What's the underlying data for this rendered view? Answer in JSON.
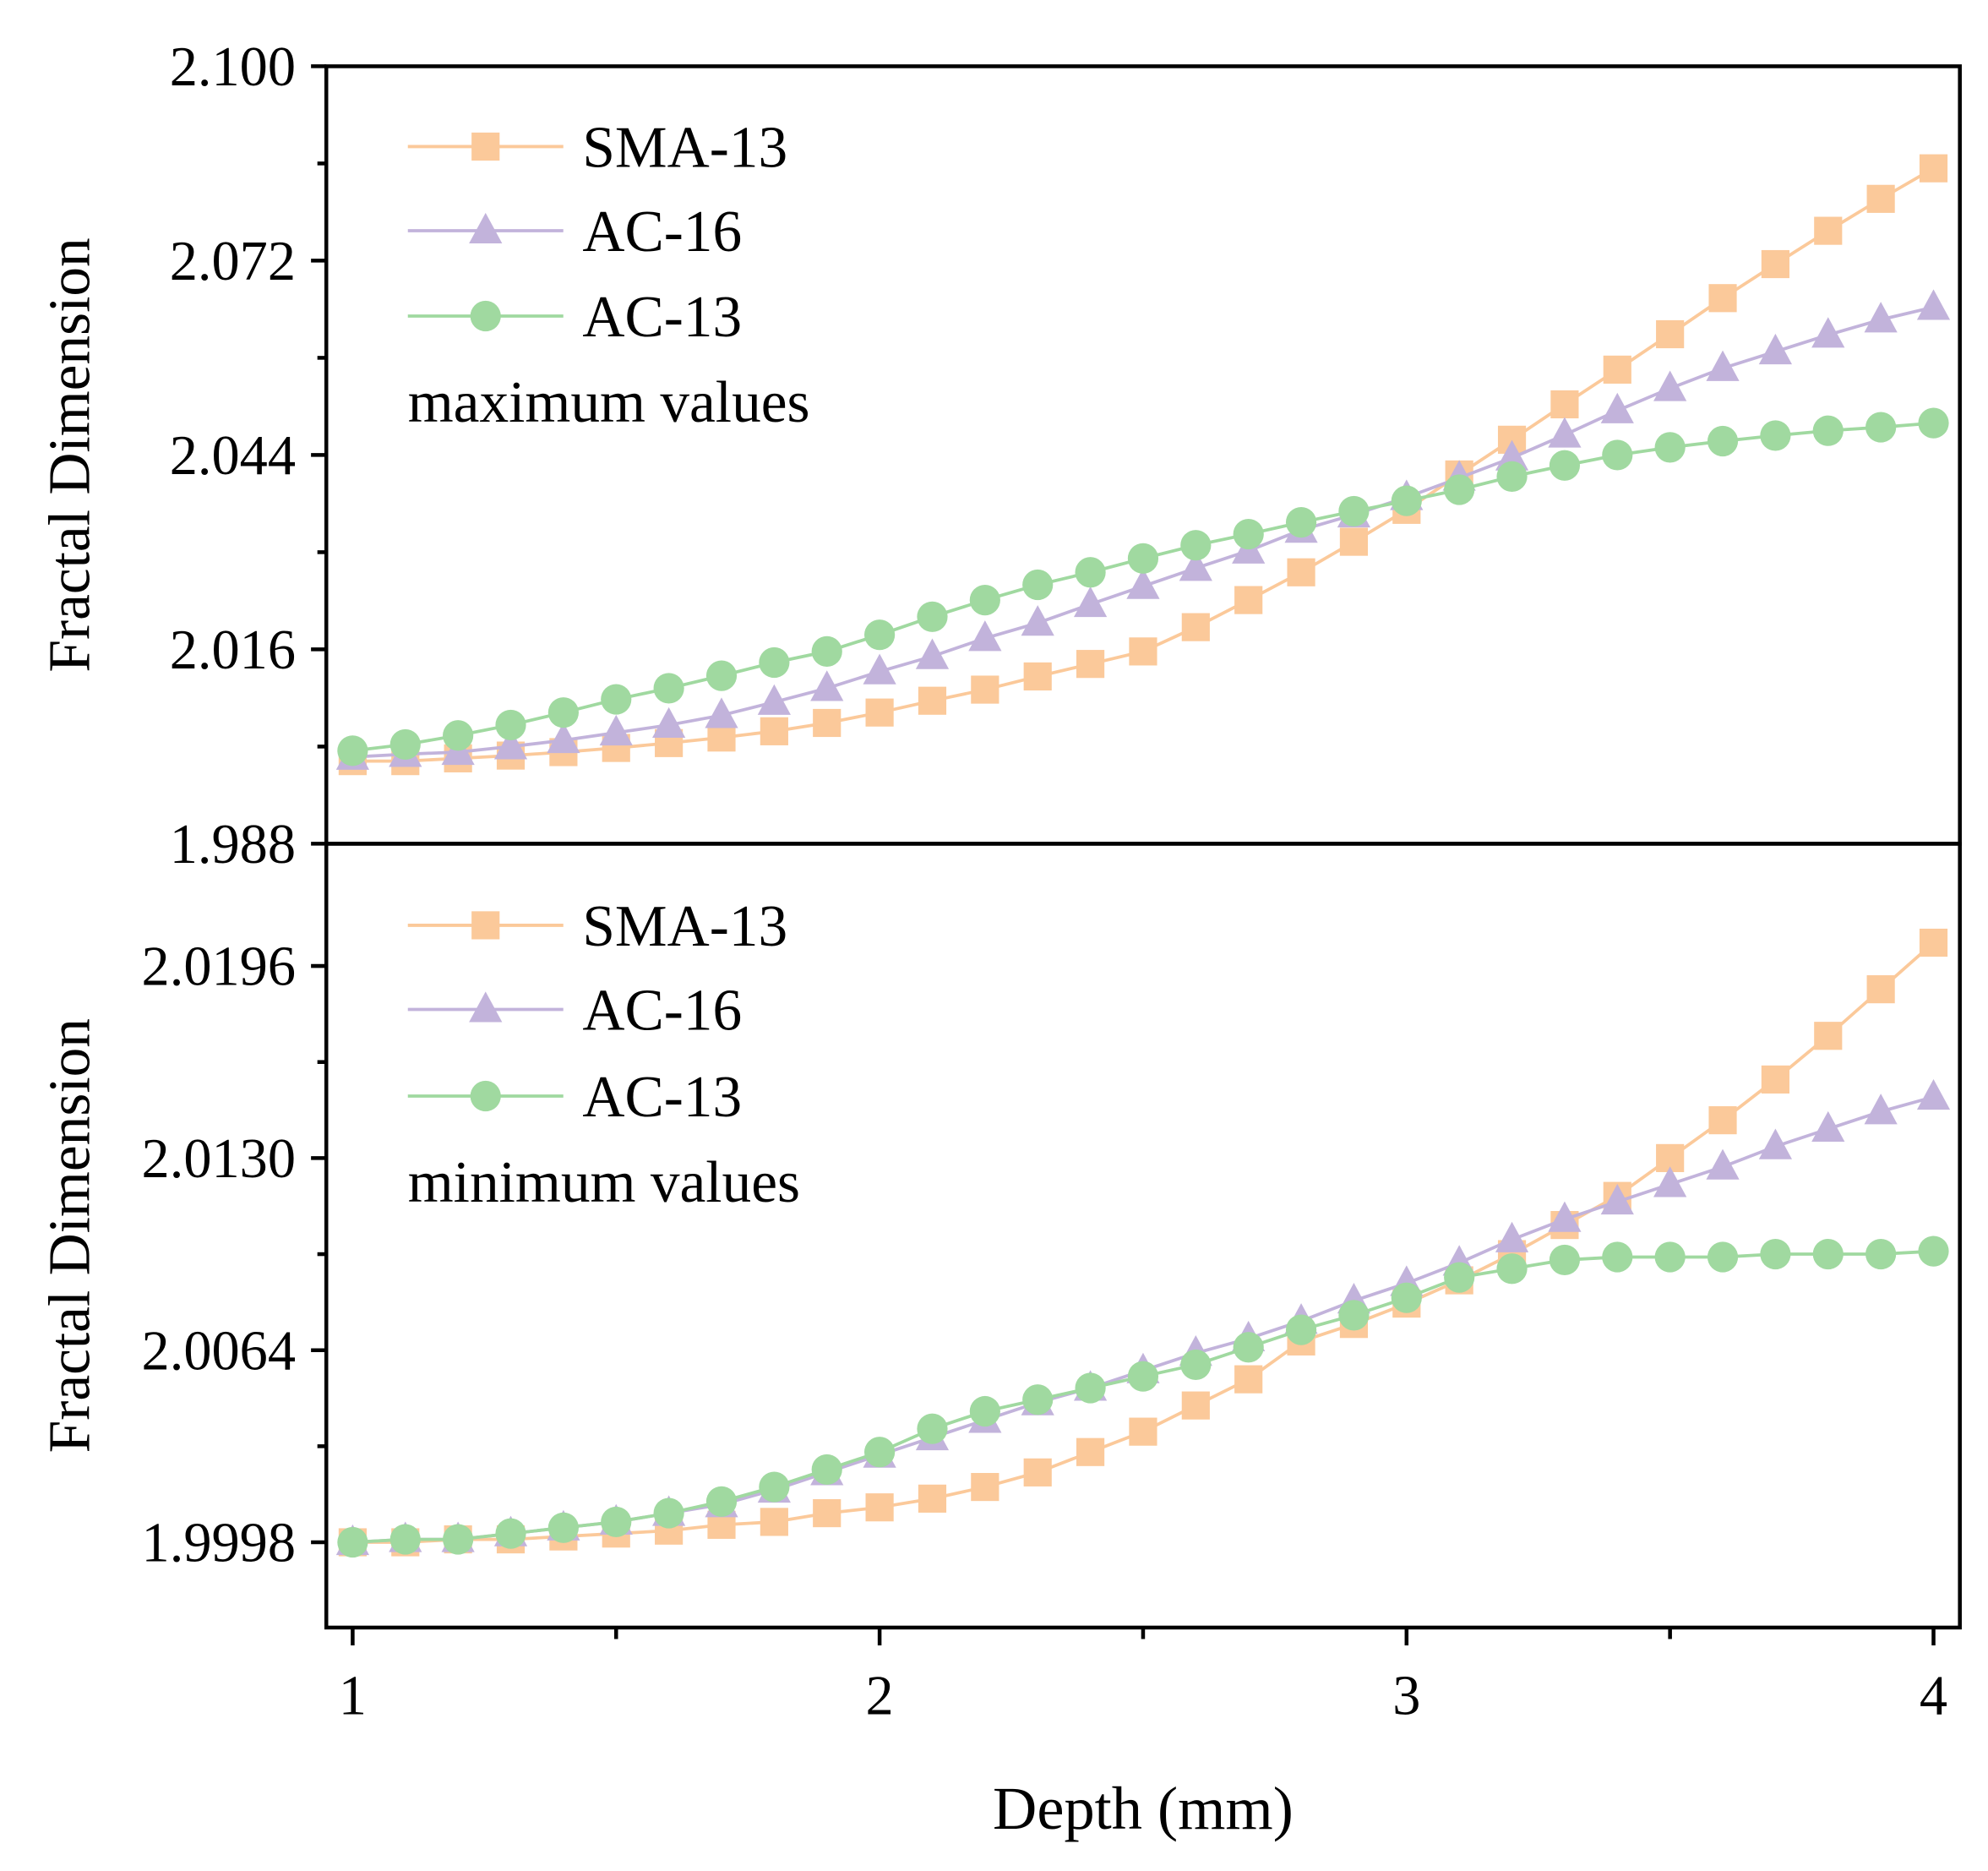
{
  "chart_data": [
    {
      "type": "line",
      "panel": "top",
      "ylabel": "Fractal Dimension",
      "note": "maximum values",
      "ylim": [
        1.988,
        2.1
      ],
      "yticks": [
        "2.100",
        "2.072",
        "2.044",
        "2.016",
        "1.988"
      ],
      "ytick_values": [
        2.1,
        2.072,
        2.044,
        2.016,
        1.988
      ],
      "x": [
        1.0,
        1.1,
        1.2,
        1.3,
        1.4,
        1.5,
        1.6,
        1.7,
        1.8,
        1.9,
        2.0,
        2.1,
        2.2,
        2.3,
        2.4,
        2.5,
        2.6,
        2.7,
        2.8,
        2.9,
        3.0,
        3.1,
        3.2,
        3.3,
        3.4,
        3.5,
        3.6,
        3.7,
        3.8,
        3.9,
        4.0
      ],
      "series": [
        {
          "name": "SMA-13",
          "marker": "square",
          "color": "#FBC99A",
          "values": [
            1.9999,
            1.9999,
            2.0003,
            2.0007,
            2.0012,
            2.0018,
            2.0025,
            2.0033,
            2.0042,
            2.0054,
            2.0069,
            2.0086,
            2.0102,
            2.0121,
            2.0139,
            2.0157,
            2.0192,
            2.0231,
            2.0271,
            2.0315,
            2.0361,
            2.0412,
            2.0462,
            2.0513,
            2.0563,
            2.0614,
            2.0666,
            2.0715,
            2.0763,
            2.0809,
            2.0853
          ]
        },
        {
          "name": "AC-16",
          "marker": "triangle",
          "color": "#C2B3DB",
          "values": [
            2.0005,
            2.0009,
            2.0012,
            2.002,
            2.0029,
            2.004,
            2.0051,
            2.0065,
            2.0084,
            2.0104,
            2.0128,
            2.015,
            2.0176,
            2.0198,
            2.0225,
            2.0251,
            2.0277,
            2.0302,
            2.0332,
            2.0354,
            2.0379,
            2.0407,
            2.0436,
            2.0469,
            2.0504,
            2.0536,
            2.0565,
            2.0589,
            2.0613,
            2.0635,
            2.0653
          ]
        },
        {
          "name": "AC-13",
          "marker": "circle",
          "color": "#A0D9A0",
          "values": [
            2.0014,
            2.0023,
            2.0036,
            2.0051,
            2.0069,
            2.0088,
            2.0104,
            2.0122,
            2.0141,
            2.0157,
            2.0181,
            2.0207,
            2.0231,
            2.0253,
            2.0271,
            2.0291,
            2.031,
            2.0326,
            2.0343,
            2.0359,
            2.0374,
            2.039,
            2.0409,
            2.0425,
            2.044,
            2.0451,
            2.046,
            2.0468,
            2.0475,
            2.048,
            2.0486
          ]
        }
      ]
    },
    {
      "type": "line",
      "panel": "bottom",
      "ylabel": "Fractal Dimension",
      "note": "minimum values",
      "ylim": [
        1.99687,
        2.0238
      ],
      "yticks": [
        "2.0196",
        "2.0130",
        "2.0064",
        "1.9998"
      ],
      "ytick_values": [
        2.0196,
        2.013,
        2.0064,
        1.9998
      ],
      "x": [
        1.0,
        1.1,
        1.2,
        1.3,
        1.4,
        1.5,
        1.6,
        1.7,
        1.8,
        1.9,
        2.0,
        2.1,
        2.2,
        2.3,
        2.4,
        2.5,
        2.6,
        2.7,
        2.8,
        2.9,
        3.0,
        3.1,
        3.2,
        3.3,
        3.4,
        3.5,
        3.6,
        3.7,
        3.8,
        3.9,
        4.0
      ],
      "series": [
        {
          "name": "SMA-13",
          "marker": "square",
          "color": "#FBC99A",
          "values": [
            1.9998,
            1.9998,
            1.9999,
            1.9999,
            2.0,
            2.0001,
            2.0002,
            2.0004,
            2.0005,
            2.0008,
            2.001,
            2.0013,
            2.0017,
            2.0022,
            2.0029,
            2.0036,
            2.0045,
            2.0054,
            2.0067,
            2.0073,
            2.008,
            2.0088,
            2.0097,
            2.0107,
            2.0117,
            2.013,
            2.0143,
            2.0157,
            2.0172,
            2.0188,
            2.0204
          ]
        },
        {
          "name": "AC-16",
          "marker": "triangle",
          "color": "#C2B3DB",
          "values": [
            1.9998,
            1.9999,
            1.9999,
            2.0001,
            2.0003,
            2.0005,
            2.0008,
            2.0011,
            2.0016,
            2.0022,
            2.0028,
            2.0034,
            2.004,
            2.0046,
            2.0051,
            2.0057,
            2.0063,
            2.0068,
            2.0074,
            2.0081,
            2.0087,
            2.0094,
            2.0102,
            2.0109,
            2.0115,
            2.0121,
            2.0127,
            2.0134,
            2.014,
            2.0146,
            2.0151
          ]
        },
        {
          "name": "AC-13",
          "marker": "circle",
          "color": "#A0D9A0",
          "values": [
            1.9998,
            1.9999,
            1.9999,
            2.0001,
            2.0003,
            2.0005,
            2.0008,
            2.0012,
            2.0017,
            2.0023,
            2.0029,
            2.0037,
            2.0043,
            2.0047,
            2.0051,
            2.0055,
            2.0059,
            2.0065,
            2.0071,
            2.0076,
            2.0082,
            2.0089,
            2.0092,
            2.0095,
            2.0096,
            2.0096,
            2.0096,
            2.0097,
            2.0097,
            2.0097,
            2.0098
          ]
        }
      ]
    }
  ],
  "xaxis": {
    "label": "Depth (mm)",
    "xlim": [
      0.95,
      4.05
    ],
    "ticks": [
      "1",
      "2",
      "3",
      "4"
    ],
    "tick_values": [
      1,
      2,
      3,
      4
    ]
  }
}
